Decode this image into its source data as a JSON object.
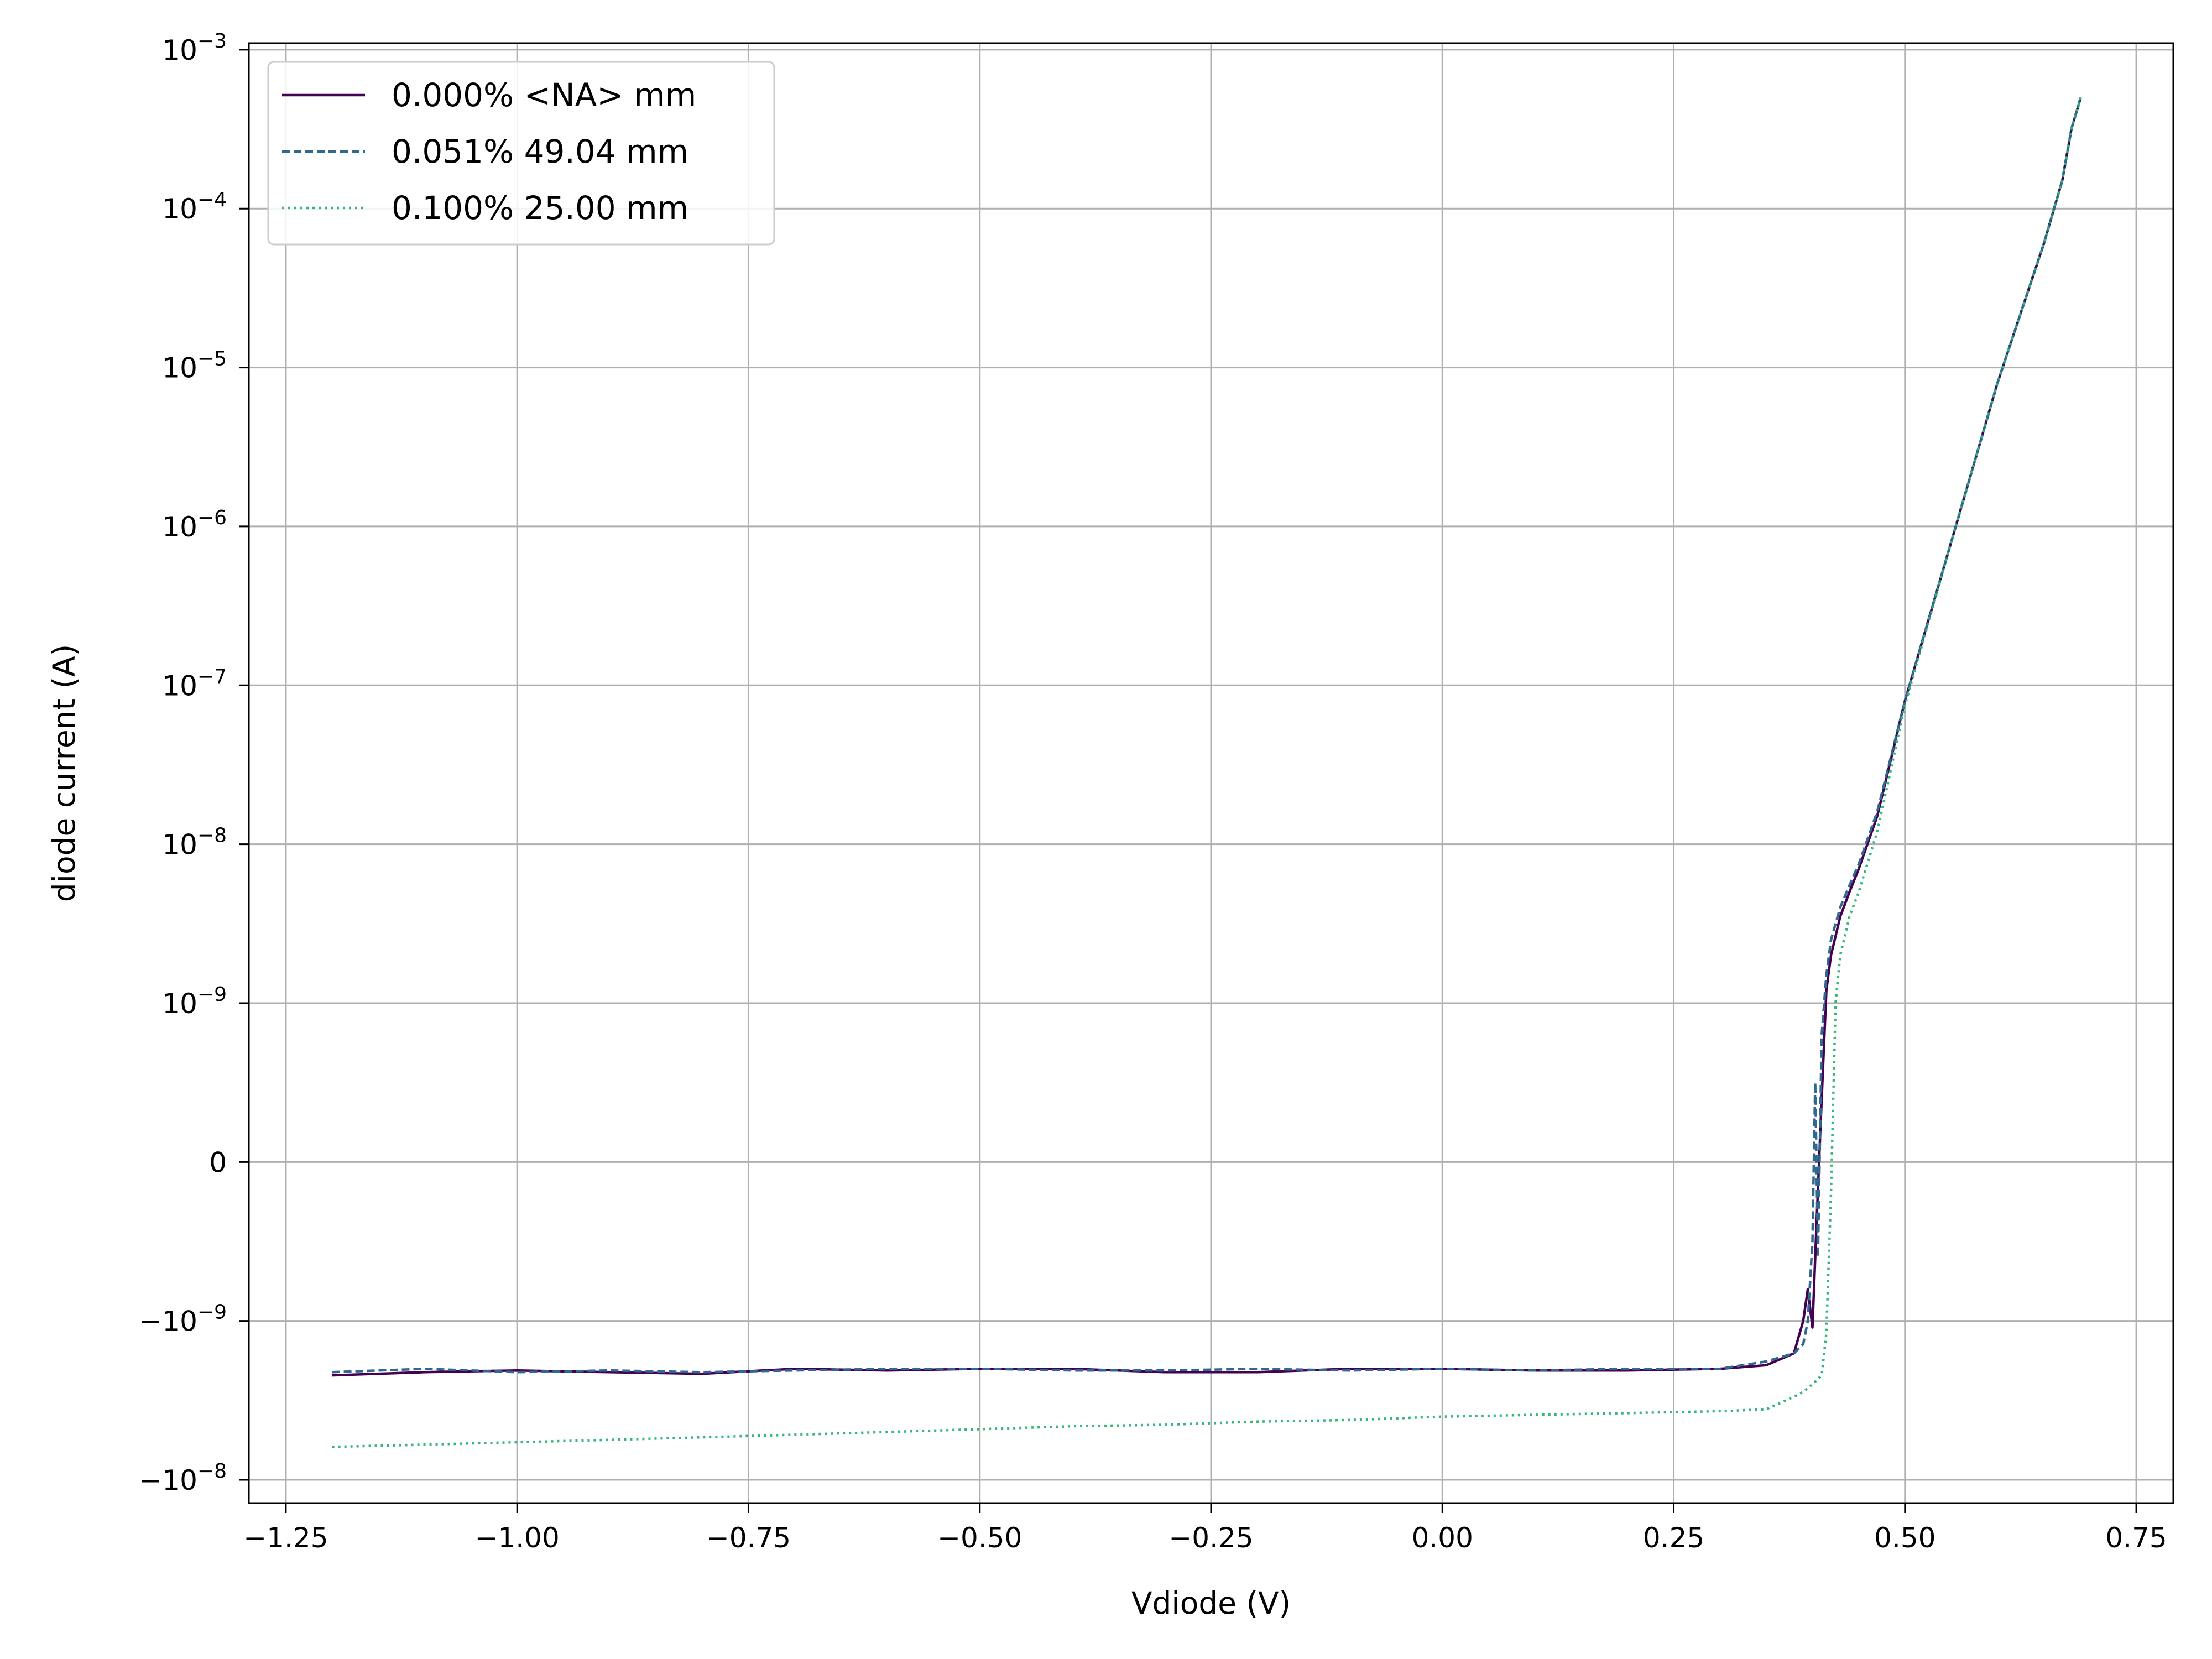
{
  "chart_data": {
    "type": "line",
    "xlabel": "Vdiode (V)",
    "ylabel": "diode current (A)",
    "y_scale": "symlog",
    "y_linthresh": 1e-09,
    "xlim": [
      -1.29,
      0.79
    ],
    "ylim": [
      -1.4e-08,
      0.0011
    ],
    "grid": true,
    "legend_position": "top-left",
    "x_ticks": [
      {
        "value": -1.25,
        "label": "−1.25"
      },
      {
        "value": -1.0,
        "label": "−1.00"
      },
      {
        "value": -0.75,
        "label": "−0.75"
      },
      {
        "value": -0.5,
        "label": "−0.50"
      },
      {
        "value": -0.25,
        "label": "−0.25"
      },
      {
        "value": 0.0,
        "label": "0.00"
      },
      {
        "value": 0.25,
        "label": "0.25"
      },
      {
        "value": 0.5,
        "label": "0.50"
      },
      {
        "value": 0.75,
        "label": "0.75"
      }
    ],
    "y_ticks": [
      {
        "value": -1e-08,
        "base": "−10",
        "exp": "−8"
      },
      {
        "value": -1e-09,
        "base": "−10",
        "exp": "−9"
      },
      {
        "value": 0,
        "base": "0",
        "exp": ""
      },
      {
        "value": 1e-09,
        "base": "10",
        "exp": "−9"
      },
      {
        "value": 1e-08,
        "base": "10",
        "exp": "−8"
      },
      {
        "value": 1e-07,
        "base": "10",
        "exp": "−7"
      },
      {
        "value": 1e-06,
        "base": "10",
        "exp": "−6"
      },
      {
        "value": 1e-05,
        "base": "10",
        "exp": "−5"
      },
      {
        "value": 0.0001,
        "base": "10",
        "exp": "−4"
      },
      {
        "value": 0.001,
        "base": "10",
        "exp": "−3"
      }
    ],
    "series": [
      {
        "name": "0.000% <NA> mm",
        "color": "#440154",
        "dash": "solid",
        "x": [
          -1.2,
          -1.1,
          -1.0,
          -0.9,
          -0.8,
          -0.7,
          -0.6,
          -0.5,
          -0.4,
          -0.3,
          -0.2,
          -0.1,
          0.0,
          0.1,
          0.2,
          0.3,
          0.35,
          0.38,
          0.39,
          0.395,
          0.4,
          0.405,
          0.41,
          0.415,
          0.42,
          0.43,
          0.44,
          0.45,
          0.47,
          0.5,
          0.55,
          0.6,
          0.65,
          0.67,
          0.68,
          0.69
        ],
        "y": [
          -2.2e-09,
          -2.1e-09,
          -2.05e-09,
          -2.1e-09,
          -2.15e-09,
          -2e-09,
          -2.05e-09,
          -2e-09,
          -2e-09,
          -2.1e-09,
          -2.1e-09,
          -2e-09,
          -2e-09,
          -2.05e-09,
          -2.05e-09,
          -2e-09,
          -1.9e-09,
          -1.6e-09,
          -1e-09,
          -8e-10,
          -1.1e-09,
          -3e-10,
          4e-10,
          1.2e-09,
          2e-09,
          3.5e-09,
          5e-09,
          7e-09,
          1.5e-08,
          8e-08,
          8e-07,
          8e-06,
          6e-05,
          0.00015,
          0.00032,
          0.0005
        ]
      },
      {
        "name": "0.051% 49.04 mm",
        "color": "#31688e",
        "dash": "dashed",
        "x": [
          -1.2,
          -1.1,
          -1.0,
          -0.9,
          -0.8,
          -0.7,
          -0.6,
          -0.5,
          -0.4,
          -0.3,
          -0.2,
          -0.1,
          0.0,
          0.1,
          0.2,
          0.3,
          0.35,
          0.38,
          0.39,
          0.395,
          0.4,
          0.403,
          0.406,
          0.41,
          0.415,
          0.42,
          0.43,
          0.44,
          0.45,
          0.47,
          0.5,
          0.55,
          0.6,
          0.65,
          0.67,
          0.68,
          0.69
        ],
        "y": [
          -2.1e-09,
          -2e-09,
          -2.1e-09,
          -2.05e-09,
          -2.1e-09,
          -2.05e-09,
          -2e-09,
          -2e-09,
          -2.05e-09,
          -2.05e-09,
          -2e-09,
          -2.05e-09,
          -2e-09,
          -2.05e-09,
          -2e-09,
          -2e-09,
          -1.8e-09,
          -1.6e-09,
          -1.4e-09,
          -1e-09,
          -5e-10,
          5e-10,
          -6e-10,
          8e-10,
          1.5e-09,
          2.5e-09,
          4e-09,
          5.5e-09,
          7.5e-09,
          1.6e-08,
          8e-08,
          8e-07,
          8e-06,
          6e-05,
          0.00015,
          0.00032,
          0.0005
        ]
      },
      {
        "name": "0.100% 25.00 mm",
        "color": "#35b779",
        "dash": "dotted",
        "x": [
          -1.2,
          -1.1,
          -1.0,
          -0.9,
          -0.8,
          -0.7,
          -0.6,
          -0.5,
          -0.4,
          -0.3,
          -0.2,
          -0.1,
          0.0,
          0.1,
          0.2,
          0.3,
          0.35,
          0.38,
          0.39,
          0.4,
          0.41,
          0.415,
          0.42,
          0.425,
          0.43,
          0.44,
          0.45,
          0.47,
          0.5,
          0.55,
          0.6,
          0.65,
          0.67,
          0.68,
          0.69
        ],
        "y": [
          -6.2e-09,
          -6e-09,
          -5.8e-09,
          -5.6e-09,
          -5.4e-09,
          -5.2e-09,
          -5e-09,
          -4.8e-09,
          -4.6e-09,
          -4.5e-09,
          -4.3e-09,
          -4.2e-09,
          -4e-09,
          -3.9e-09,
          -3.8e-09,
          -3.7e-09,
          -3.6e-09,
          -3e-09,
          -2.8e-09,
          -2.5e-09,
          -2.2e-09,
          -1.2e-09,
          -2e-10,
          1e-09,
          2e-09,
          3.5e-09,
          5e-09,
          1.2e-08,
          7.5e-08,
          8e-07,
          8e-06,
          6e-05,
          0.00015,
          0.00032,
          0.0005
        ]
      }
    ]
  }
}
